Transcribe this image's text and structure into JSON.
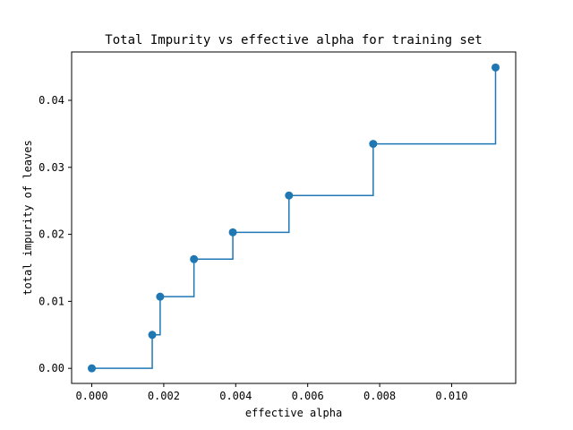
{
  "chart_data": {
    "type": "line",
    "drawstyle": "steps-post",
    "marker": "o",
    "title": "Total Impurity vs effective alpha for training set",
    "xlabel": "effective alpha",
    "ylabel": "total impurity of leaves",
    "xlim": [
      -0.00056,
      0.01178
    ],
    "ylim": [
      -0.00225,
      0.04722
    ],
    "xticks": [
      0.0,
      0.002,
      0.004,
      0.006,
      0.008,
      0.01
    ],
    "xtick_labels": [
      "0.000",
      "0.002",
      "0.004",
      "0.006",
      "0.008",
      "0.010"
    ],
    "yticks": [
      0.0,
      0.01,
      0.02,
      0.03,
      0.04
    ],
    "ytick_labels": [
      "0.00",
      "0.01",
      "0.02",
      "0.03",
      "0.04"
    ],
    "series": [
      {
        "name": "total impurity",
        "color": "#1f77b4",
        "x": [
          0.0,
          0.00168,
          0.0019,
          0.00284,
          0.00392,
          0.00548,
          0.00782,
          0.01122
        ],
        "y": [
          0.0,
          0.005,
          0.0107,
          0.0163,
          0.0203,
          0.0258,
          0.0335,
          0.0449
        ]
      }
    ],
    "grid": false
  }
}
